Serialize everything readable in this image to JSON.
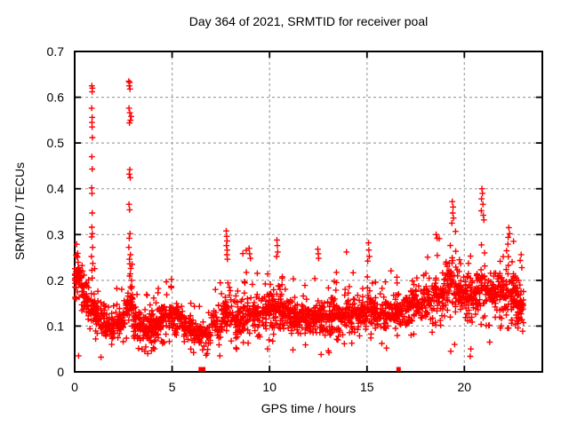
{
  "title": "Day 364 of 2021, SRMTID for receiver poal",
  "axes": {
    "x": {
      "label": "GPS time / hours",
      "min": 0,
      "max": 24,
      "ticks": [
        0,
        5,
        10,
        15,
        20
      ],
      "tick_labels": [
        "0",
        "5",
        "10",
        "15",
        "20"
      ],
      "grid_ticks": [
        5,
        10,
        15,
        20
      ]
    },
    "y": {
      "label": "SRMTID / TECUs",
      "min": 0,
      "max": 0.7,
      "ticks": [
        0,
        0.1,
        0.2,
        0.3,
        0.4,
        0.5,
        0.6,
        0.7
      ],
      "tick_labels": [
        "0",
        "0.1",
        "0.2",
        "0.3",
        "0.4",
        "0.5",
        "0.6",
        "0.7"
      ],
      "grid_ticks": [
        0.1,
        0.2,
        0.3,
        0.4,
        0.5,
        0.6
      ]
    }
  },
  "style": {
    "marker": "plus",
    "marker_color": "#ff0000",
    "grid_color": "#a4a4a4",
    "border_color": "#000000",
    "background": "#ffffff"
  },
  "chart_data": {
    "type": "scatter",
    "title": "Day 364 of 2021, SRMTID for receiver poal",
    "xlabel": "GPS time / hours",
    "ylabel": "SRMTID / TECUs",
    "xlim": [
      0,
      24
    ],
    "ylim": [
      0,
      0.7
    ],
    "xticks": [
      0,
      5,
      10,
      15,
      20
    ],
    "yticks": [
      0,
      0.1,
      0.2,
      0.3,
      0.4,
      0.5,
      0.6,
      0.7
    ],
    "grid": true,
    "legend": "none",
    "series": [
      {
        "name": "SRMTID",
        "marker": "+",
        "color": "#ff0000",
        "bin_format": [
          "x_start_hours",
          "x_end_hours",
          "point_count",
          "y_min_TECUs",
          "y_typical_TECUs",
          "y_max_TECUs"
        ],
        "density_bins": [
          [
            0.0,
            0.12,
            26,
            0.13,
            0.2,
            0.32
          ],
          [
            0.12,
            0.35,
            30,
            0.14,
            0.2,
            0.285
          ],
          [
            0.35,
            0.65,
            35,
            0.1,
            0.165,
            0.26
          ],
          [
            0.65,
            1.05,
            40,
            0.085,
            0.14,
            0.25
          ],
          [
            1.05,
            1.55,
            55,
            0.055,
            0.115,
            0.2
          ],
          [
            1.55,
            2.1,
            55,
            0.05,
            0.1,
            0.175
          ],
          [
            2.1,
            2.6,
            55,
            0.055,
            0.105,
            0.2
          ],
          [
            2.6,
            3.0,
            45,
            0.07,
            0.145,
            0.27
          ],
          [
            3.0,
            3.5,
            55,
            0.04,
            0.1,
            0.21
          ],
          [
            3.5,
            4.0,
            60,
            0.035,
            0.095,
            0.19
          ],
          [
            4.0,
            4.4,
            50,
            0.05,
            0.1,
            0.235
          ],
          [
            4.4,
            5.0,
            60,
            0.06,
            0.12,
            0.235
          ],
          [
            5.0,
            5.5,
            55,
            0.06,
            0.115,
            0.215
          ],
          [
            5.5,
            6.0,
            50,
            0.045,
            0.095,
            0.165
          ],
          [
            6.0,
            6.45,
            40,
            0.04,
            0.085,
            0.15
          ],
          [
            6.45,
            7.0,
            40,
            0.035,
            0.08,
            0.14
          ],
          [
            7.0,
            7.6,
            50,
            0.05,
            0.105,
            0.22
          ],
          [
            7.6,
            8.0,
            45,
            0.06,
            0.13,
            0.3
          ],
          [
            8.0,
            8.5,
            50,
            0.05,
            0.105,
            0.19
          ],
          [
            8.5,
            9.1,
            55,
            0.06,
            0.125,
            0.27
          ],
          [
            9.1,
            9.6,
            50,
            0.07,
            0.125,
            0.23
          ],
          [
            9.6,
            10.1,
            55,
            0.065,
            0.13,
            0.24
          ],
          [
            10.1,
            10.6,
            55,
            0.06,
            0.13,
            0.29
          ],
          [
            10.6,
            11.1,
            55,
            0.07,
            0.125,
            0.24
          ],
          [
            11.1,
            11.7,
            60,
            0.06,
            0.115,
            0.21
          ],
          [
            11.7,
            12.3,
            60,
            0.055,
            0.115,
            0.22
          ],
          [
            12.3,
            12.7,
            45,
            0.06,
            0.12,
            0.27
          ],
          [
            12.7,
            13.3,
            60,
            0.045,
            0.115,
            0.22
          ],
          [
            13.3,
            13.9,
            60,
            0.06,
            0.12,
            0.235
          ],
          [
            13.9,
            14.5,
            60,
            0.055,
            0.12,
            0.26
          ],
          [
            14.5,
            15.0,
            55,
            0.06,
            0.12,
            0.235
          ],
          [
            15.0,
            15.4,
            45,
            0.07,
            0.135,
            0.28
          ],
          [
            15.4,
            16.0,
            55,
            0.06,
            0.12,
            0.215
          ],
          [
            16.0,
            16.6,
            55,
            0.07,
            0.125,
            0.23
          ],
          [
            16.6,
            17.2,
            55,
            0.075,
            0.135,
            0.245
          ],
          [
            17.2,
            17.8,
            55,
            0.08,
            0.145,
            0.26
          ],
          [
            17.8,
            18.4,
            55,
            0.08,
            0.155,
            0.285
          ],
          [
            18.4,
            19.0,
            60,
            0.09,
            0.17,
            0.31
          ],
          [
            19.0,
            19.6,
            60,
            0.08,
            0.185,
            0.33
          ],
          [
            19.6,
            20.1,
            55,
            0.1,
            0.175,
            0.3
          ],
          [
            20.1,
            20.6,
            55,
            0.085,
            0.16,
            0.285
          ],
          [
            20.6,
            21.15,
            60,
            0.1,
            0.18,
            0.345
          ],
          [
            21.15,
            21.7,
            55,
            0.09,
            0.165,
            0.285
          ],
          [
            21.7,
            22.2,
            55,
            0.09,
            0.17,
            0.3
          ],
          [
            22.2,
            22.65,
            55,
            0.085,
            0.175,
            0.315
          ],
          [
            22.65,
            23.05,
            55,
            0.07,
            0.14,
            0.265
          ]
        ],
        "outlier_points": [
          [
            0.88,
            0.625
          ],
          [
            0.91,
            0.62
          ],
          [
            0.895,
            0.612
          ],
          [
            0.87,
            0.576
          ],
          [
            0.9,
            0.556
          ],
          [
            0.885,
            0.545
          ],
          [
            0.895,
            0.535
          ],
          [
            0.91,
            0.512
          ],
          [
            0.88,
            0.47
          ],
          [
            0.9,
            0.443
          ],
          [
            0.872,
            0.402
          ],
          [
            0.89,
            0.39
          ],
          [
            0.9,
            0.347
          ],
          [
            0.882,
            0.316
          ],
          [
            0.908,
            0.302
          ],
          [
            0.872,
            0.295
          ],
          [
            0.92,
            0.272
          ],
          [
            0.862,
            0.252
          ],
          [
            0.93,
            0.237
          ],
          [
            0.88,
            0.222
          ],
          [
            0.9,
            0.205
          ],
          [
            2.78,
            0.635
          ],
          [
            2.82,
            0.632
          ],
          [
            2.8,
            0.625
          ],
          [
            2.84,
            0.618
          ],
          [
            2.79,
            0.576
          ],
          [
            2.83,
            0.566
          ],
          [
            2.9,
            0.558
          ],
          [
            2.86,
            0.55
          ],
          [
            2.81,
            0.544
          ],
          [
            2.83,
            0.442
          ],
          [
            2.8,
            0.432
          ],
          [
            2.85,
            0.424
          ],
          [
            2.79,
            0.366
          ],
          [
            2.82,
            0.354
          ],
          [
            2.84,
            0.302
          ],
          [
            2.8,
            0.292
          ],
          [
            2.78,
            0.272
          ],
          [
            2.86,
            0.256
          ],
          [
            2.81,
            0.246
          ],
          [
            2.83,
            0.236
          ],
          [
            2.88,
            0.226
          ],
          [
            2.85,
            0.214
          ],
          [
            2.92,
            0.2
          ],
          [
            7.78,
            0.308
          ],
          [
            7.8,
            0.296
          ],
          [
            7.82,
            0.286
          ],
          [
            7.79,
            0.276
          ],
          [
            7.83,
            0.266
          ],
          [
            7.81,
            0.256
          ],
          [
            7.84,
            0.246
          ],
          [
            8.95,
            0.27
          ],
          [
            8.98,
            0.258
          ],
          [
            9.02,
            0.248
          ],
          [
            10.38,
            0.288
          ],
          [
            10.4,
            0.276
          ],
          [
            10.42,
            0.262
          ],
          [
            10.36,
            0.252
          ],
          [
            12.48,
            0.268
          ],
          [
            12.5,
            0.258
          ],
          [
            12.52,
            0.248
          ],
          [
            13.95,
            0.262
          ],
          [
            15.08,
            0.282
          ],
          [
            15.1,
            0.266
          ],
          [
            15.12,
            0.252
          ],
          [
            18.55,
            0.3
          ],
          [
            18.6,
            0.292
          ],
          [
            19.38,
            0.372
          ],
          [
            19.42,
            0.36
          ],
          [
            19.4,
            0.347
          ],
          [
            19.44,
            0.336
          ],
          [
            19.36,
            0.325
          ],
          [
            20.9,
            0.4
          ],
          [
            20.93,
            0.39
          ],
          [
            20.88,
            0.378
          ],
          [
            20.95,
            0.366
          ],
          [
            20.87,
            0.352
          ],
          [
            20.97,
            0.342
          ],
          [
            21.0,
            0.332
          ],
          [
            22.28,
            0.315
          ],
          [
            22.32,
            0.302
          ],
          [
            22.25,
            0.294
          ],
          [
            0.2,
            0.035
          ],
          [
            1.35,
            0.032
          ],
          [
            1.9,
            0.06
          ],
          [
            3.6,
            0.045
          ],
          [
            3.75,
            0.04
          ],
          [
            4.1,
            0.05
          ],
          [
            6.1,
            0.042
          ],
          [
            6.8,
            0.04
          ],
          [
            7.45,
            0.035
          ],
          [
            8.3,
            0.05
          ],
          [
            9.9,
            0.05
          ],
          [
            11.2,
            0.048
          ],
          [
            12.65,
            0.038
          ],
          [
            13.05,
            0.042
          ],
          [
            16.0,
            0.052
          ],
          [
            19.3,
            0.045
          ],
          [
            19.5,
            0.06
          ],
          [
            20.3,
            0.034
          ],
          [
            20.33,
            0.05
          ],
          [
            21.3,
            0.065
          ]
        ],
        "zero_value_points_hours": [
          6.47,
          6.6,
          16.62
        ]
      }
    ]
  }
}
